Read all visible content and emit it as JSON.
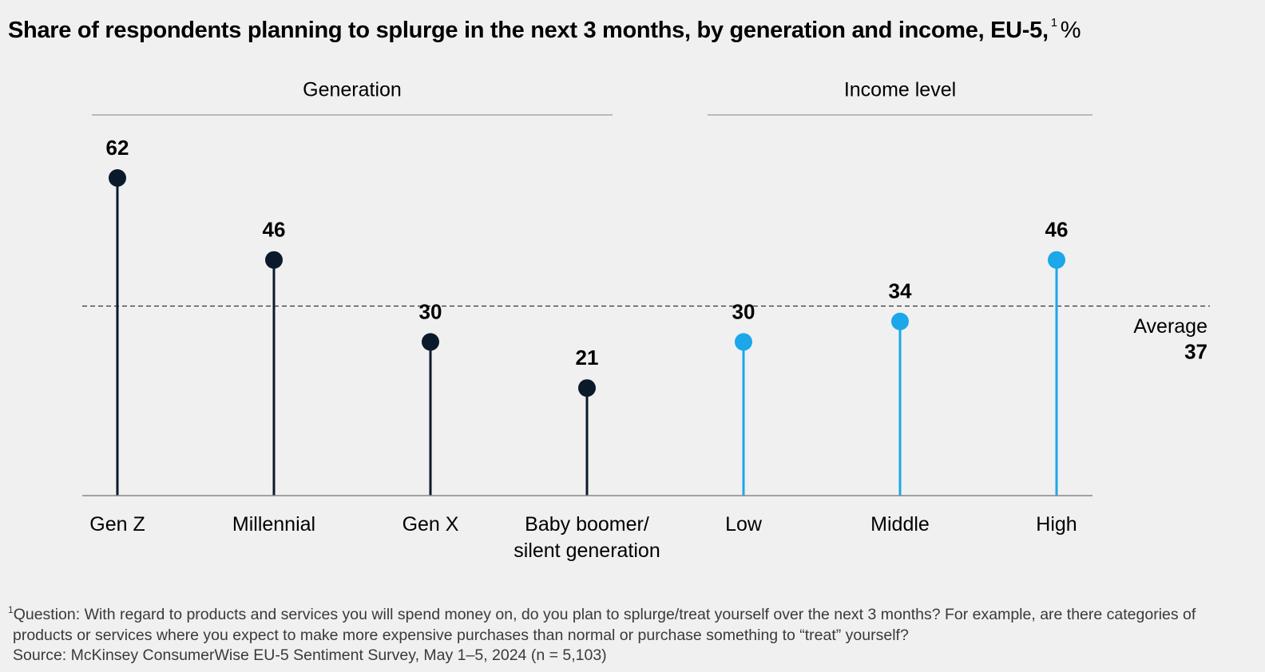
{
  "chart_data": {
    "type": "lollipop",
    "title": "Share of respondents planning to splurge in the next 3 months, by generation and income, EU-5,",
    "title_note": "1",
    "unit": "%",
    "ylim": [
      0,
      62
    ],
    "groups": [
      {
        "name": "Generation",
        "color": "#0b1a2b",
        "categories": [
          "Gen Z",
          "Millennial",
          "Gen X",
          "Baby boomer/ silent generation"
        ],
        "values": [
          62,
          46,
          30,
          21
        ]
      },
      {
        "name": "Income level",
        "color": "#1ba7e9",
        "categories": [
          "Low",
          "Middle",
          "High"
        ],
        "values": [
          30,
          34,
          46
        ]
      }
    ],
    "average": {
      "label": "Average",
      "value": 37
    },
    "footnote": {
      "note": "1",
      "question": "Question: With regard to products and services you will spend money on, do you plan to splurge/treat yourself over the next 3 months? For example, are there categories of products or services where you expect to make more expensive purchases than normal or purchase something to “treat” yourself?",
      "source": "Source: McKinsey ConsumerWise EU-5 Sentiment Survey, May 1–5, 2024 (n = 5,103)"
    }
  }
}
